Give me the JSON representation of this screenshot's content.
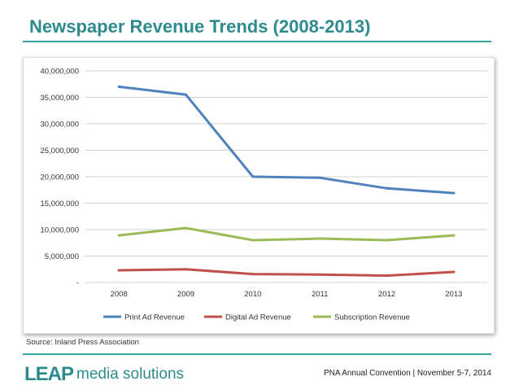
{
  "slide": {
    "title": "Newspaper Revenue Trends (2008-2013)",
    "source": "Source: Inland Press Association",
    "logo_mark": "LEAP",
    "logo_text": "media solutions",
    "footer": "PNA Annual Convention | November 5-7, 2014",
    "accent_color": "#2e8b8c"
  },
  "chart_data": {
    "type": "line",
    "title": "",
    "xlabel": "",
    "ylabel": "",
    "categories": [
      "2008",
      "2009",
      "2010",
      "2011",
      "2012",
      "2013"
    ],
    "ylim": [
      0,
      40000000
    ],
    "yticks": [
      0,
      5000000,
      10000000,
      15000000,
      20000000,
      25000000,
      30000000,
      35000000,
      40000000
    ],
    "ytick_labels": [
      "-",
      "5,000,000",
      "10,000,000",
      "15,000,000",
      "20,000,000",
      "25,000,000",
      "30,000,000",
      "35,000,000",
      "40,000,000"
    ],
    "grid": true,
    "legend": "bottom",
    "series": [
      {
        "name": "Print Ad Revenue",
        "color": "#4f81bd",
        "values": [
          37000000,
          35500000,
          20000000,
          19800000,
          17800000,
          16900000
        ]
      },
      {
        "name": "Digital Ad Revenue",
        "color": "#c0504d",
        "values": [
          2300000,
          2500000,
          1600000,
          1500000,
          1300000,
          2000000
        ]
      },
      {
        "name": "Subscription Revenue",
        "color": "#9bbb59",
        "values": [
          8900000,
          10300000,
          8000000,
          8300000,
          8000000,
          8900000
        ]
      }
    ]
  }
}
